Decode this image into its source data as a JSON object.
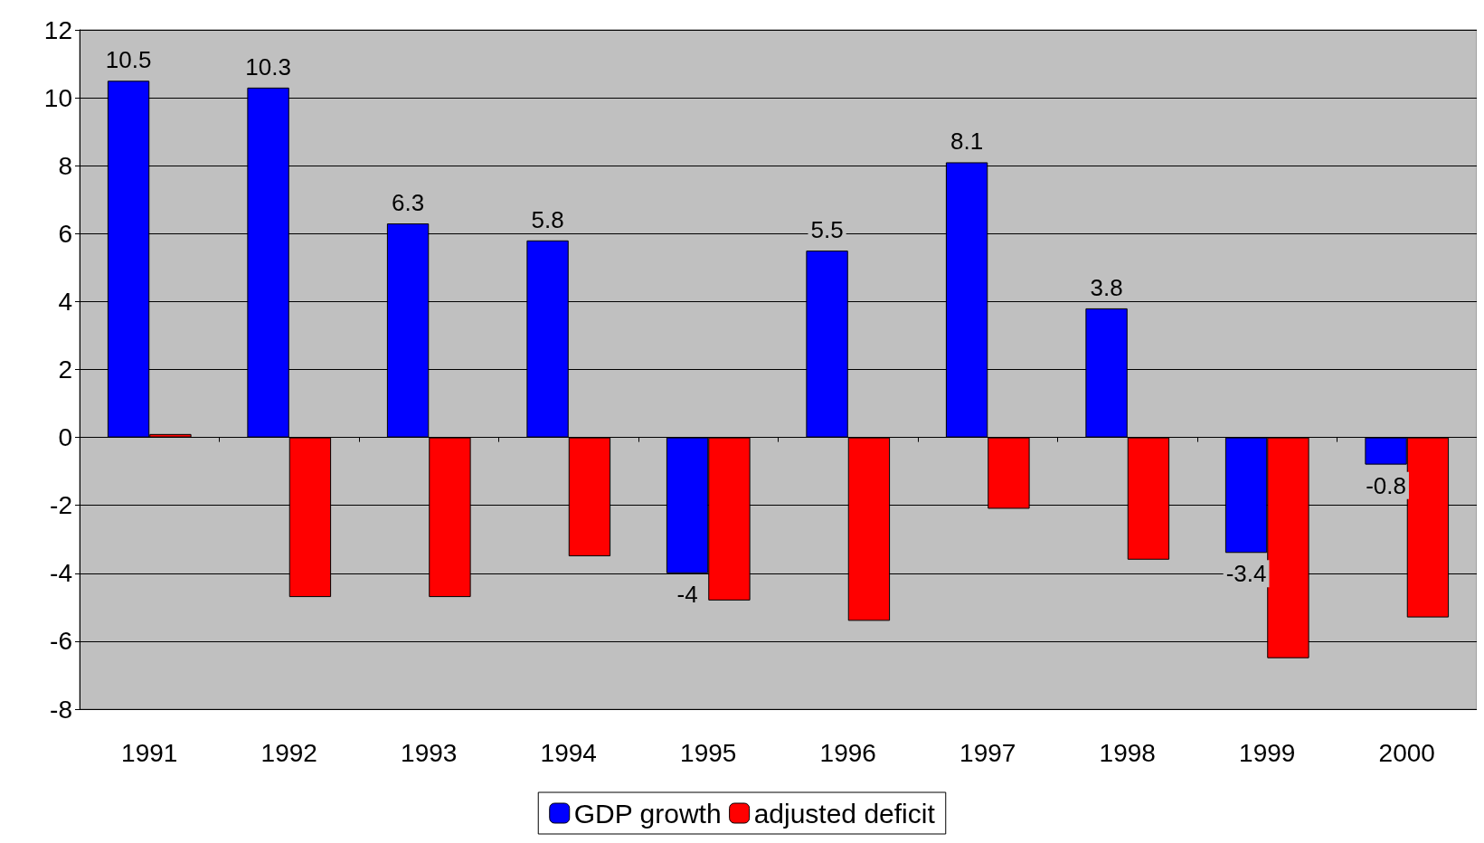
{
  "chart_data": {
    "type": "bar",
    "categories": [
      "1991",
      "1992",
      "1993",
      "1994",
      "1995",
      "1996",
      "1997",
      "1998",
      "1999",
      "2000"
    ],
    "series": [
      {
        "name": "GDP growth",
        "color": "#0000ff",
        "values": [
          10.5,
          10.3,
          6.3,
          5.8,
          -4,
          5.5,
          8.1,
          3.8,
          -3.4,
          -0.8
        ],
        "value_labels": [
          "10.5",
          "10.3",
          "6.3",
          "5.8",
          "-4",
          "5.5",
          "8.1",
          "3.8",
          "-3.4",
          "-0.8"
        ]
      },
      {
        "name": "adjusted deficit",
        "color": "#ff0000",
        "values": [
          0.1,
          -4.7,
          -4.7,
          -3.5,
          -4.8,
          -5.4,
          -2.1,
          -3.6,
          -6.5,
          -5.3
        ]
      }
    ],
    "ylim": [
      -8,
      12
    ],
    "yticks": [
      -8,
      -6,
      -4,
      -2,
      0,
      2,
      4,
      6,
      8,
      10,
      12
    ],
    "grid": "y",
    "legend": "bottom"
  }
}
